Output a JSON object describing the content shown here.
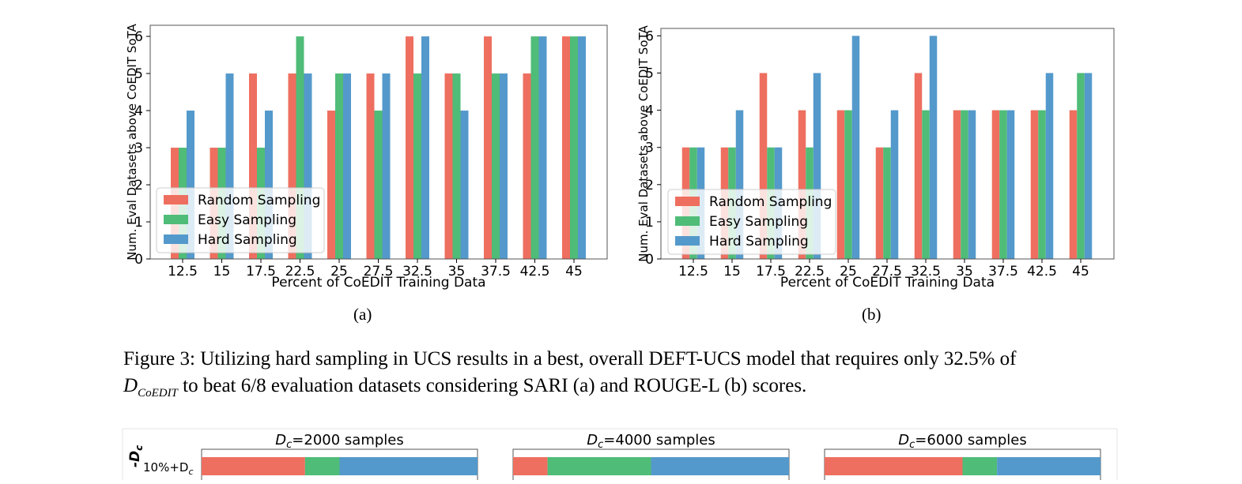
{
  "colors": {
    "random": "#ee6f5f",
    "easy": "#4fbc78",
    "hard": "#5499cb"
  },
  "chart_data": [
    {
      "type": "bar",
      "panel": "a",
      "categories": [
        "12.5",
        "15",
        "17.5",
        "22.5",
        "25",
        "27.5",
        "32.5",
        "35",
        "37.5",
        "42.5",
        "45"
      ],
      "series": [
        {
          "name": "Random Sampling",
          "values": [
            3,
            3,
            5,
            5,
            4,
            5,
            6,
            5,
            6,
            5,
            6
          ]
        },
        {
          "name": "Easy Sampling",
          "values": [
            3,
            3,
            3,
            6,
            5,
            4,
            5,
            5,
            5,
            6,
            6
          ]
        },
        {
          "name": "Hard Sampling",
          "values": [
            4,
            5,
            4,
            5,
            5,
            5,
            6,
            4,
            5,
            6,
            6
          ]
        }
      ],
      "xlabel": "Percent of CoEDIT Training Data",
      "ylabel": "Num. Eval Datasets above CoEDIT SoTA",
      "yticks": [
        "0",
        "1",
        "2",
        "3",
        "4",
        "5",
        "6"
      ],
      "ylim": [
        0,
        6.3
      ],
      "legend": "bottom-left",
      "sublabel": "(a)"
    },
    {
      "type": "bar",
      "panel": "b",
      "categories": [
        "12.5",
        "15",
        "17.5",
        "22.5",
        "25",
        "27.5",
        "32.5",
        "35",
        "37.5",
        "42.5",
        "45"
      ],
      "series": [
        {
          "name": "Random Sampling",
          "values": [
            3,
            3,
            5,
            4,
            4,
            3,
            5,
            4,
            4,
            4,
            4
          ]
        },
        {
          "name": "Easy Sampling",
          "values": [
            3,
            3,
            3,
            3,
            4,
            3,
            4,
            4,
            4,
            4,
            5
          ]
        },
        {
          "name": "Hard Sampling",
          "values": [
            3,
            4,
            3,
            5,
            6,
            4,
            6,
            4,
            4,
            5,
            5
          ]
        }
      ],
      "xlabel": "Percent of CoEDIT Training Data",
      "ylabel": "Num. Eval Datasets above CoEDIT SoTA",
      "yticks": [
        "0",
        "1",
        "2",
        "3",
        "4",
        "5",
        "6"
      ],
      "ylim": [
        0,
        6.2
      ],
      "legend": "bottom-left",
      "sublabel": "(b)"
    },
    {
      "type": "bar",
      "orientation": "horizontal-stacked",
      "panel": "bottom",
      "ylabel": "-D",
      "ylabel_sub": "c",
      "row_label": "10%+D",
      "row_label_sub": "c",
      "titles": [
        {
          "prefix": "D",
          "sub": "c",
          "text": "=2000 samples"
        },
        {
          "prefix": "D",
          "sub": "c",
          "text": "=4000 samples"
        },
        {
          "prefix": "D",
          "sub": "c",
          "text": "=6000 samples"
        }
      ],
      "segments": [
        [
          0.375,
          0.125,
          0.5
        ],
        [
          0.125,
          0.375,
          0.5
        ],
        [
          0.5,
          0.125,
          0.375
        ]
      ]
    }
  ],
  "caption": {
    "line1": "Figure 3: Utilizing hard sampling in UCS results in a best, overall DEFT-UCS model that requires only 32.5% of",
    "math_main": "D",
    "math_sub": "CoEDIT",
    "line2_rest": " to beat 6/8 evaluation datasets considering SARI (a) and ROUGE-L (b) scores."
  }
}
